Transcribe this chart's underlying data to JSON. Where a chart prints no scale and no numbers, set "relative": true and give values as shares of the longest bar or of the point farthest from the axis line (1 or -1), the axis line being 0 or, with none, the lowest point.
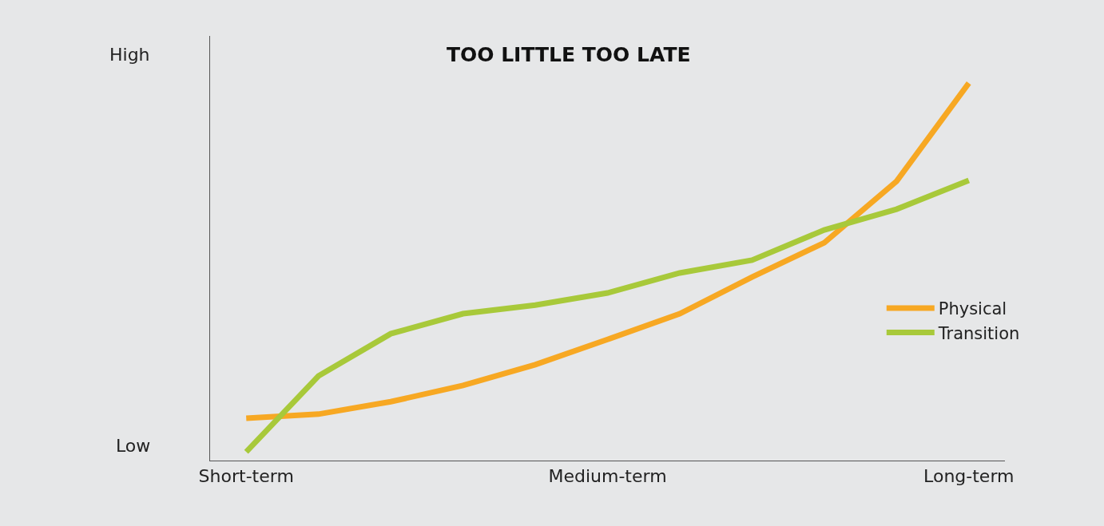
{
  "chart_data": {
    "type": "line",
    "title": "TOO LITTLE TOO LATE",
    "relative": true,
    "categories": [
      "Short-term",
      null,
      null,
      null,
      null,
      "Medium-term",
      null,
      null,
      null,
      null,
      "Long-term"
    ],
    "series": [
      {
        "name": "Physical",
        "color": "#f7a823",
        "values": [
          0.112,
          0.123,
          0.156,
          0.199,
          0.254,
          0.321,
          0.389,
          0.486,
          0.577,
          0.74,
          1
        ]
      },
      {
        "name": "Transition",
        "color": "#a8c93a",
        "values": [
          0.023,
          0.224,
          0.336,
          0.389,
          0.412,
          0.444,
          0.497,
          0.531,
          0.611,
          0.666,
          0.742
        ]
      }
    ],
    "annotations": [
      "High",
      "Low"
    ],
    "legend": "right",
    "grid": false,
    "marker": "none",
    "line_style": "solid"
  }
}
